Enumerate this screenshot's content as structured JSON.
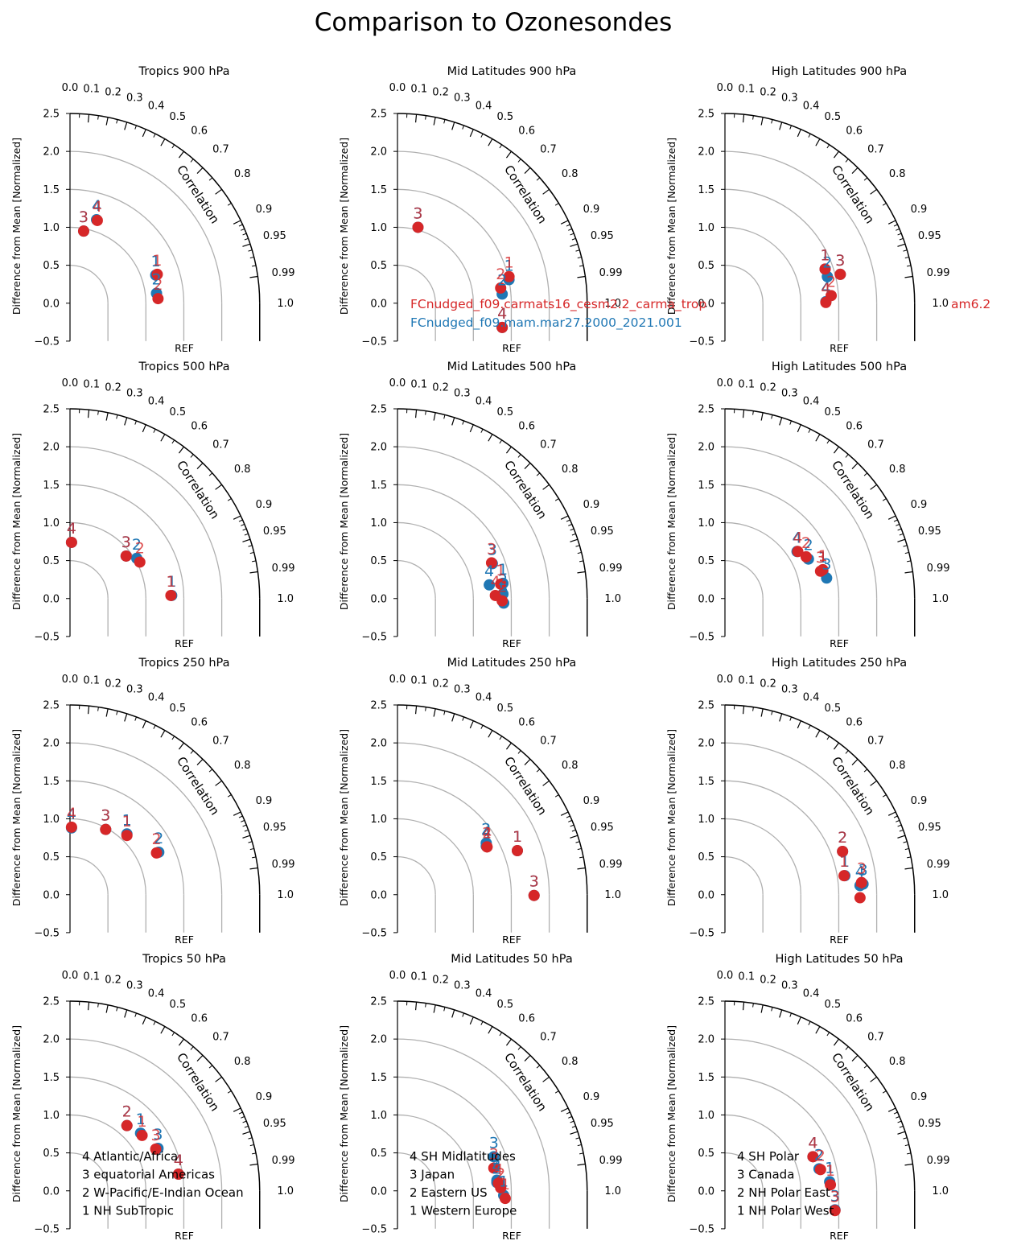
{
  "title": "Comparison to Ozonesondes",
  "colors": {
    "model_a": "#d62728",
    "model_b": "#1f77b4",
    "grid": "#b0b0b0",
    "axis": "#000000"
  },
  "axis_labels": {
    "y": "Difference from Mean [Normalized]",
    "x": "REF",
    "arc": "Correlation"
  },
  "y_ticks": [
    "2.5",
    "2.0",
    "1.5",
    "1.0",
    "0.5",
    "0.0",
    "−0.5"
  ],
  "corr_ticks": [
    "0.0",
    "0.1",
    "0.2",
    "0.3",
    "0.4",
    "0.5",
    "0.6",
    "0.7",
    "0.8",
    "0.9",
    "0.95",
    "0.99",
    "1.0"
  ],
  "legend_models": [
    {
      "label": "FCnudged_f09.carmats16_cesm2.2_carma_trop",
      "color": "#d62728",
      "extra": "am6.2"
    },
    {
      "label": "FCnudged_f09.mam.mar27.2000_2021.001",
      "color": "#1f77b4"
    }
  ],
  "chart_data": [
    {
      "type": "scatter",
      "title": "Tropics 900 hPa",
      "xlim": [
        0,
        3
      ],
      "ylim": [
        -0.5,
        2.5
      ],
      "series": [
        {
          "points": [
            {
              "id": "1",
              "x": 1.13,
              "y": 0.37
            },
            {
              "id": "2",
              "x": 1.14,
              "y": 0.13
            },
            {
              "id": "3",
              "x": 0.18,
              "y": 0.95
            },
            {
              "id": "4",
              "x": 0.35,
              "y": 1.1
            }
          ]
        },
        {
          "points": [
            {
              "id": "1",
              "x": 1.15,
              "y": 0.38
            },
            {
              "id": "2",
              "x": 1.16,
              "y": 0.06
            },
            {
              "id": "3",
              "x": 0.18,
              "y": 0.95
            },
            {
              "id": "4",
              "x": 0.36,
              "y": 1.09
            }
          ]
        }
      ]
    },
    {
      "type": "scatter",
      "title": "Mid Latitudes 900 hPa",
      "xlim": [
        0,
        3
      ],
      "ylim": [
        -0.5,
        2.5
      ],
      "series": [
        {
          "points": [
            {
              "id": "1",
              "x": 1.47,
              "y": 0.31
            },
            {
              "id": "2",
              "x": 1.38,
              "y": 0.12
            },
            {
              "id": "3",
              "x": 0.27,
              "y": 1.0
            },
            {
              "id": "4",
              "x": 1.38,
              "y": -0.32
            }
          ]
        },
        {
          "points": [
            {
              "id": "1",
              "x": 1.47,
              "y": 0.35
            },
            {
              "id": "2",
              "x": 1.36,
              "y": 0.2
            },
            {
              "id": "3",
              "x": 0.27,
              "y": 1.0
            },
            {
              "id": "4",
              "x": 1.38,
              "y": -0.32
            }
          ]
        }
      ]
    },
    {
      "type": "scatter",
      "title": "High Latitudes 900 hPa",
      "xlim": [
        0,
        3
      ],
      "ylim": [
        -0.5,
        2.5
      ],
      "series": [
        {
          "points": [
            {
              "id": "1",
              "x": 1.32,
              "y": 0.45
            },
            {
              "id": "2",
              "x": 1.35,
              "y": 0.35
            },
            {
              "id": "3",
              "x": 1.52,
              "y": 0.38
            },
            {
              "id": "4",
              "x": 1.33,
              "y": 0.02
            }
          ]
        },
        {
          "points": [
            {
              "id": "1",
              "x": 1.32,
              "y": 0.45
            },
            {
              "id": "2",
              "x": 1.4,
              "y": 0.1
            },
            {
              "id": "3",
              "x": 1.52,
              "y": 0.38
            },
            {
              "id": "4",
              "x": 1.33,
              "y": 0.01
            }
          ]
        }
      ]
    },
    {
      "type": "scatter",
      "title": "Tropics 500 hPa",
      "xlim": [
        0,
        3
      ],
      "ylim": [
        -0.5,
        2.5
      ],
      "series": [
        {
          "points": [
            {
              "id": "1",
              "x": 1.34,
              "y": 0.04
            },
            {
              "id": "2",
              "x": 0.88,
              "y": 0.53
            },
            {
              "id": "3",
              "x": 0.74,
              "y": 0.56
            },
            {
              "id": "4",
              "x": 0.02,
              "y": 0.74
            }
          ]
        },
        {
          "points": [
            {
              "id": "1",
              "x": 1.33,
              "y": 0.04
            },
            {
              "id": "2",
              "x": 0.92,
              "y": 0.48
            },
            {
              "id": "3",
              "x": 0.74,
              "y": 0.56
            },
            {
              "id": "4",
              "x": 0.02,
              "y": 0.74
            }
          ]
        }
      ]
    },
    {
      "type": "scatter",
      "title": "Mid Latitudes 500 hPa",
      "xlim": [
        0,
        3
      ],
      "ylim": [
        -0.5,
        2.5
      ],
      "series": [
        {
          "points": [
            {
              "id": "1",
              "x": 1.39,
              "y": 0.2
            },
            {
              "id": "2",
              "x": 1.39,
              "y": 0.06
            },
            {
              "id": "3",
              "x": 1.25,
              "y": 0.46
            },
            {
              "id": "4",
              "x": 1.21,
              "y": 0.18
            },
            {
              "id": "5",
              "x": 1.4,
              "y": -0.06
            }
          ]
        },
        {
          "points": [
            {
              "id": "1",
              "x": 1.36,
              "y": 0.19
            },
            {
              "id": "2",
              "x": 1.38,
              "y": -0.03
            },
            {
              "id": "3",
              "x": 1.24,
              "y": 0.47
            },
            {
              "id": "4",
              "x": 1.29,
              "y": 0.04
            }
          ]
        }
      ]
    },
    {
      "type": "scatter",
      "title": "High Latitudes 500 hPa",
      "xlim": [
        0,
        3
      ],
      "ylim": [
        -0.5,
        2.5
      ],
      "series": [
        {
          "points": [
            {
              "id": "1",
              "x": 1.29,
              "y": 0.36
            },
            {
              "id": "2",
              "x": 1.1,
              "y": 0.52
            },
            {
              "id": "3",
              "x": 1.34,
              "y": 0.27
            },
            {
              "id": "4",
              "x": 0.95,
              "y": 0.62
            }
          ]
        },
        {
          "points": [
            {
              "id": "1",
              "x": 1.29,
              "y": 0.38
            },
            {
              "id": "2",
              "x": 1.07,
              "y": 0.55
            },
            {
              "id": "3",
              "x": 1.26,
              "y": 0.36
            },
            {
              "id": "4",
              "x": 0.96,
              "y": 0.62
            }
          ]
        }
      ]
    },
    {
      "type": "scatter",
      "title": "Tropics 250 hPa",
      "xlim": [
        0,
        3
      ],
      "ylim": [
        -0.5,
        2.5
      ],
      "series": [
        {
          "points": [
            {
              "id": "1",
              "x": 0.75,
              "y": 0.8
            },
            {
              "id": "2",
              "x": 1.17,
              "y": 0.56
            },
            {
              "id": "3",
              "x": 0.47,
              "y": 0.86
            },
            {
              "id": "4",
              "x": 0.02,
              "y": 0.88
            }
          ]
        },
        {
          "points": [
            {
              "id": "1",
              "x": 0.75,
              "y": 0.78
            },
            {
              "id": "2",
              "x": 1.14,
              "y": 0.55
            },
            {
              "id": "3",
              "x": 0.47,
              "y": 0.86
            },
            {
              "id": "4",
              "x": 0.02,
              "y": 0.89
            }
          ]
        }
      ]
    },
    {
      "type": "scatter",
      "title": "Mid Latitudes 250 hPa",
      "xlim": [
        0,
        3
      ],
      "ylim": [
        -0.5,
        2.5
      ],
      "series": [
        {
          "points": [
            {
              "id": "1",
              "x": 1.58,
              "y": 0.58
            },
            {
              "id": "2",
              "x": 1.17,
              "y": 0.68
            },
            {
              "id": "3",
              "x": 1.8,
              "y": -0.01
            },
            {
              "id": "4",
              "x": 1.17,
              "y": 0.64
            }
          ]
        },
        {
          "points": [
            {
              "id": "1",
              "x": 1.58,
              "y": 0.58
            },
            {
              "id": "2",
              "x": 1.18,
              "y": 0.63
            },
            {
              "id": "3",
              "x": 1.8,
              "y": -0.01
            },
            {
              "id": "4",
              "x": 1.18,
              "y": 0.63
            }
          ]
        }
      ]
    },
    {
      "type": "scatter",
      "title": "High Latitudes 250 hPa",
      "xlim": [
        0,
        3
      ],
      "ylim": [
        -0.5,
        2.5
      ],
      "series": [
        {
          "points": [
            {
              "id": "1",
              "x": 1.58,
              "y": 0.25
            },
            {
              "id": "2",
              "x": 1.55,
              "y": 0.57
            },
            {
              "id": "3",
              "x": 1.82,
              "y": 0.14
            },
            {
              "id": "4",
              "x": 1.78,
              "y": 0.12
            }
          ]
        },
        {
          "points": [
            {
              "id": "1",
              "x": 1.57,
              "y": 0.25
            },
            {
              "id": "2",
              "x": 1.55,
              "y": 0.57
            },
            {
              "id": "3",
              "x": 1.8,
              "y": 0.16
            },
            {
              "id": "4",
              "x": 1.78,
              "y": -0.04
            }
          ]
        }
      ]
    },
    {
      "type": "scatter",
      "title": "Tropics 50 hPa",
      "xlim": [
        0,
        3
      ],
      "ylim": [
        -0.5,
        2.5
      ],
      "legend": [
        "4 Atlantic/Africa",
        "3 equatorial Americas",
        "2 W-Pacific/E-Indian Ocean",
        "1 NH SubTropic"
      ],
      "series": [
        {
          "points": [
            {
              "id": "1",
              "x": 0.93,
              "y": 0.76
            },
            {
              "id": "2",
              "x": 0.75,
              "y": 0.86
            },
            {
              "id": "3",
              "x": 1.16,
              "y": 0.56
            },
            {
              "id": "4",
              "x": 1.43,
              "y": 0.22
            }
          ]
        },
        {
          "points": [
            {
              "id": "1",
              "x": 0.95,
              "y": 0.73
            },
            {
              "id": "2",
              "x": 0.75,
              "y": 0.86
            },
            {
              "id": "3",
              "x": 1.13,
              "y": 0.55
            },
            {
              "id": "4",
              "x": 1.43,
              "y": 0.22
            }
          ]
        }
      ]
    },
    {
      "type": "scatter",
      "title": "Mid Latitudes 50 hPa",
      "xlim": [
        0,
        3
      ],
      "ylim": [
        -0.5,
        2.5
      ],
      "legend": [
        "4 SH Midlatitudes",
        "3 Japan",
        "2 Eastern US",
        "1 Western Europe"
      ],
      "series": [
        {
          "points": [
            {
              "id": "1",
              "x": 1.4,
              "y": -0.06
            },
            {
              "id": "2",
              "x": 1.31,
              "y": 0.11
            },
            {
              "id": "3",
              "x": 1.27,
              "y": 0.45
            },
            {
              "id": "4",
              "x": 1.31,
              "y": 0.14
            }
          ]
        },
        {
          "points": [
            {
              "id": "1",
              "x": 1.42,
              "y": -0.1
            },
            {
              "id": "2",
              "x": 1.36,
              "y": 0.04
            },
            {
              "id": "3",
              "x": 1.27,
              "y": 0.3
            },
            {
              "id": "4",
              "x": 1.33,
              "y": 0.1
            }
          ]
        }
      ]
    },
    {
      "type": "scatter",
      "title": "High Latitudes 50 hPa",
      "xlim": [
        0,
        3
      ],
      "ylim": [
        -0.5,
        2.5
      ],
      "legend": [
        "4 SH Polar",
        "3 Canada",
        "2 NH Polar East",
        "1 NH Polar West"
      ],
      "series": [
        {
          "points": [
            {
              "id": "1",
              "x": 1.38,
              "y": 0.12
            },
            {
              "id": "2",
              "x": 1.24,
              "y": 0.29
            },
            {
              "id": "3",
              "x": 1.45,
              "y": -0.25
            },
            {
              "id": "4",
              "x": 1.16,
              "y": 0.45
            }
          ]
        },
        {
          "points": [
            {
              "id": "1",
              "x": 1.39,
              "y": 0.08
            },
            {
              "id": "2",
              "x": 1.26,
              "y": 0.28
            },
            {
              "id": "3",
              "x": 1.45,
              "y": -0.26
            },
            {
              "id": "4",
              "x": 1.16,
              "y": 0.45
            }
          ]
        }
      ]
    }
  ]
}
